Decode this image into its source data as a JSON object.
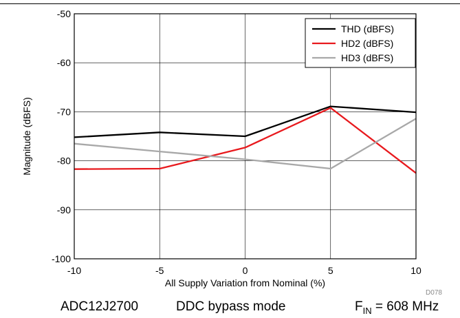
{
  "chart_data": {
    "type": "line",
    "title": "",
    "xlabel": "All Supply Variation from Nominal (%)",
    "ylabel": "Magnitude (dBFS)",
    "x": [
      -10,
      -5,
      0,
      5,
      10
    ],
    "xlim": [
      -10,
      10
    ],
    "ylim": [
      -100,
      -50
    ],
    "xticks": [
      -10,
      -5,
      0,
      5,
      10
    ],
    "yticks": [
      -100,
      -90,
      -80,
      -70,
      -60,
      -50
    ],
    "x_tick_labels": [
      "-10",
      "-5",
      "0",
      "5",
      "10"
    ],
    "y_tick_labels": [
      "-100",
      "-90",
      "-80",
      "-70",
      "-60",
      "-50"
    ],
    "grid": true,
    "legend_position": "top-right",
    "series": [
      {
        "name": "THD (dBFS)",
        "color": "#000000",
        "values": [
          -75.2,
          -74.2,
          -75.0,
          -68.9,
          -70.1
        ]
      },
      {
        "name": "HD2 (dBFS)",
        "color": "#e8191d",
        "values": [
          -81.7,
          -81.6,
          -77.3,
          -69.2,
          -82.5
        ]
      },
      {
        "name": "HD3 (dBFS)",
        "color": "#a8a8a8",
        "values": [
          -76.5,
          -78.1,
          -79.7,
          -81.6,
          -71.4
        ]
      }
    ]
  },
  "figure_id": "D078",
  "caption": {
    "device": "ADC12J2700",
    "mode": "DDC bypass mode",
    "fin_prefix": "F",
    "fin_subscript": "IN",
    "fin_value": " = 608 MHz"
  }
}
